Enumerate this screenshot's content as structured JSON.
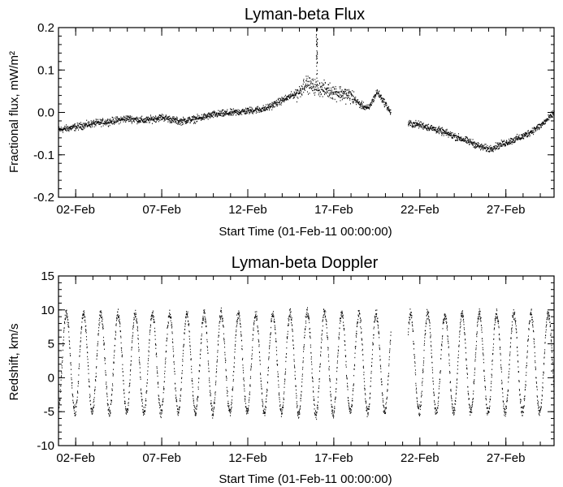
{
  "chart_data": [
    {
      "type": "scatter",
      "title": "Lyman-beta Flux",
      "xlabel": "Start Time (01-Feb-11 00:00:00)",
      "ylabel": "Fractional flux, mW/m²",
      "xlim": [
        0.0,
        28.8
      ],
      "ylim": [
        -0.2,
        0.2
      ],
      "x_ticks": [
        {
          "day": 1,
          "label": "02-Feb"
        },
        {
          "day": 6,
          "label": "07-Feb"
        },
        {
          "day": 11,
          "label": "12-Feb"
        },
        {
          "day": 16,
          "label": "17-Feb"
        },
        {
          "day": 21,
          "label": "22-Feb"
        },
        {
          "day": 26,
          "label": "27-Feb"
        }
      ],
      "y_ticks": [
        {
          "value": -0.2,
          "label": "-0.2"
        },
        {
          "value": -0.1,
          "label": "-0.1"
        },
        {
          "value": 0.0,
          "label": "0.0"
        },
        {
          "value": 0.1,
          "label": "0.1"
        },
        {
          "value": 0.2,
          "label": "0.2"
        }
      ],
      "series": [
        {
          "x_unit": "days since 01-Feb-11 00:00:00",
          "x": [
            0.0,
            1,
            2,
            3,
            4,
            5,
            6,
            7,
            8,
            9,
            10,
            11,
            12,
            13,
            13.5,
            14,
            14.3,
            14.6,
            15,
            15.5,
            16,
            16.5,
            17,
            17.5,
            18,
            18.5,
            19,
            19.3,
            20.3,
            21,
            22,
            23,
            24,
            24.5,
            25,
            26,
            27,
            28,
            28.8
          ],
          "y": [
            -0.04,
            -0.033,
            -0.025,
            -0.02,
            -0.013,
            -0.018,
            -0.01,
            -0.02,
            -0.014,
            -0.004,
            0.0,
            0.005,
            0.01,
            0.03,
            0.04,
            0.05,
            0.07,
            0.065,
            0.06,
            0.055,
            0.05,
            0.045,
            0.04,
            0.02,
            0.01,
            0.05,
            0.02,
            0.0,
            -0.025,
            -0.028,
            -0.04,
            -0.055,
            -0.07,
            -0.08,
            -0.085,
            -0.07,
            -0.055,
            -0.03,
            0.0
          ],
          "spread": 0.012,
          "spike": {
            "x": 15.0,
            "y_top": 0.2
          },
          "gap": [
            19.3,
            20.3
          ],
          "color": "#000000"
        }
      ]
    },
    {
      "type": "scatter",
      "title": "Lyman-beta Doppler",
      "xlabel": "Start Time (01-Feb-11 00:00:00)",
      "ylabel": "Redshift, km/s",
      "xlim": [
        0.0,
        28.8
      ],
      "ylim": [
        -10,
        15
      ],
      "x_ticks": [
        {
          "day": 1,
          "label": "02-Feb"
        },
        {
          "day": 6,
          "label": "07-Feb"
        },
        {
          "day": 11,
          "label": "12-Feb"
        },
        {
          "day": 16,
          "label": "17-Feb"
        },
        {
          "day": 21,
          "label": "22-Feb"
        },
        {
          "day": 26,
          "label": "27-Feb"
        }
      ],
      "y_ticks": [
        {
          "value": -10,
          "label": "-10"
        },
        {
          "value": -5,
          "label": "-5"
        },
        {
          "value": 0,
          "label": "0"
        },
        {
          "value": 5,
          "label": "5"
        },
        {
          "value": 10,
          "label": "10"
        },
        {
          "value": 15,
          "label": "15"
        }
      ],
      "series": [
        {
          "description": "periodic oscillation between about -5 and +10 km/s with ~1-day period",
          "period_days": 1.0,
          "min": -5,
          "max": 9.5,
          "gap": [
            19.3,
            20.3
          ],
          "color": "#000000"
        }
      ]
    }
  ]
}
